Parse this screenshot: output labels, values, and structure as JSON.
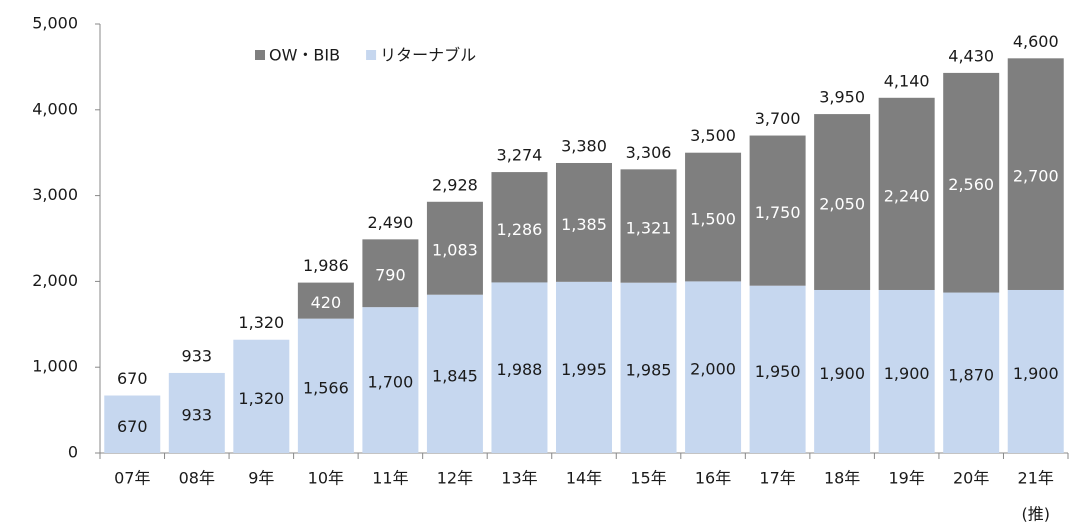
{
  "chart_data": {
    "type": "stacked_bar",
    "categories": [
      "07年",
      "08年",
      "9年",
      "10年",
      "11年",
      "12年",
      "13年",
      "14年",
      "15年",
      "16年",
      "17年",
      "18年",
      "19年",
      "20年",
      "21年"
    ],
    "category_note": "(推)",
    "series": [
      {
        "name": "リターナブル",
        "color": "#c6d7ef",
        "label_color": "#1a1a1a",
        "values": [
          670,
          933,
          1320,
          1566,
          1700,
          1845,
          1988,
          1995,
          1985,
          2000,
          1950,
          1900,
          1900,
          1870,
          1900
        ],
        "value_labels": [
          "670",
          "933",
          "1,320",
          "1,566",
          "1,700",
          "1,845",
          "1,988",
          "1,995",
          "1,985",
          "2,000",
          "1,950",
          "1,900",
          "1,900",
          "1,870",
          "1,900"
        ]
      },
      {
        "name": "OW・BIB",
        "color": "#7f7f7f",
        "label_color": "#ffffff",
        "values": [
          null,
          null,
          null,
          420,
          790,
          1083,
          1286,
          1385,
          1321,
          1500,
          1750,
          2050,
          2240,
          2560,
          2700
        ],
        "value_labels": [
          null,
          null,
          null,
          "420",
          "790",
          "1,083",
          "1,286",
          "1,385",
          "1,321",
          "1,500",
          "1,750",
          "2,050",
          "2,240",
          "2,560",
          "2,700"
        ]
      }
    ],
    "totals": [
      670,
      933,
      1320,
      1986,
      2490,
      2928,
      3274,
      3380,
      3306,
      3500,
      3700,
      3950,
      4140,
      4430,
      4600
    ],
    "totals_labels": [
      "670",
      "933",
      "1,320",
      "1,986",
      "2,490",
      "2,928",
      "3,274",
      "3,380",
      "3,306",
      "3,500",
      "3,700",
      "3,950",
      "4,140",
      "4,430",
      "4,600"
    ],
    "ylim": [
      0,
      5000
    ],
    "yticks": [
      0,
      {
        "value": 1000,
        "label": "1,000"
      },
      {
        "value": 2000,
        "label": "2,000"
      },
      {
        "value": 3000,
        "label": "3,000"
      },
      {
        "value": 4000,
        "label": "4,000"
      },
      {
        "value": 5000,
        "label": "5,000"
      }
    ],
    "legend_order": [
      1,
      0
    ],
    "grid": false
  }
}
